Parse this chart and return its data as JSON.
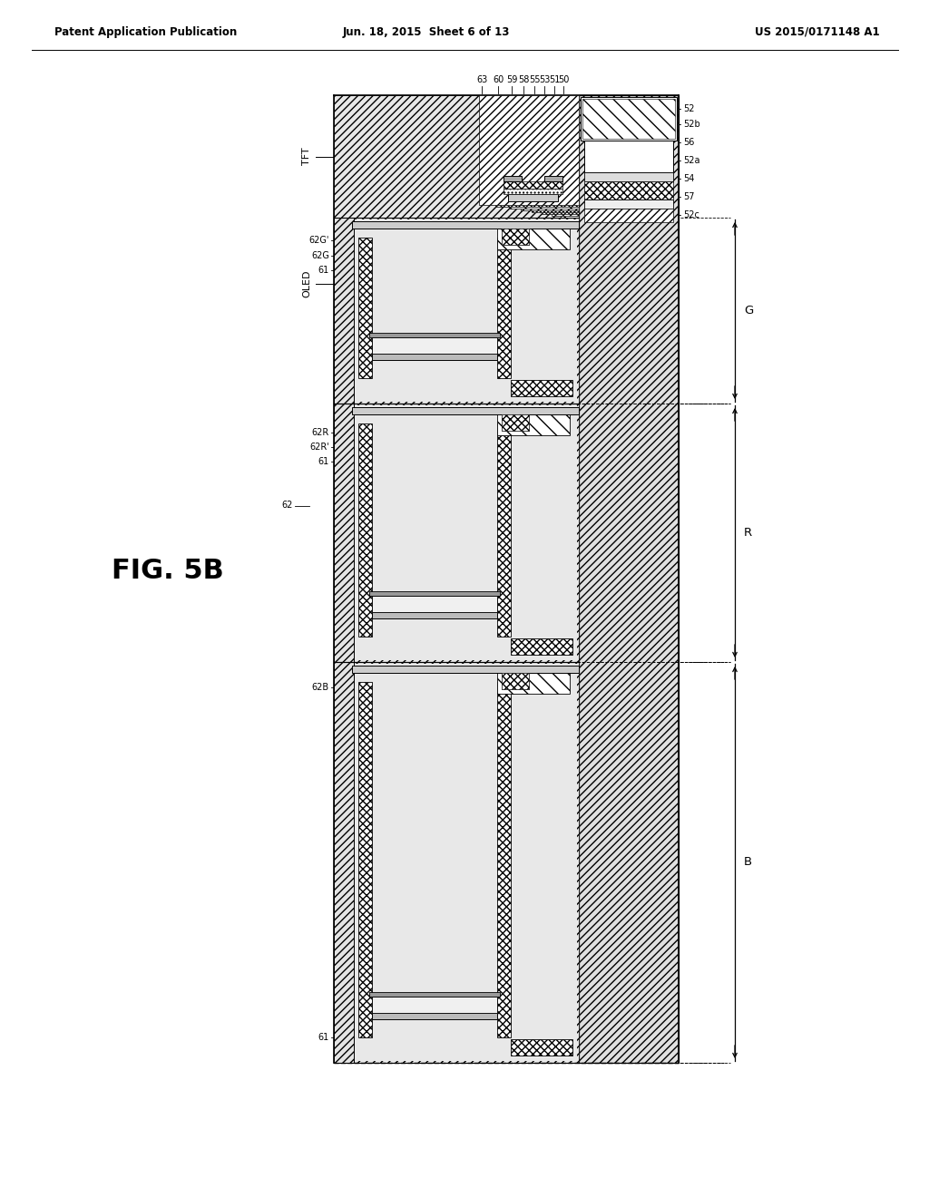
{
  "bg_color": "#ffffff",
  "header_left": "Patent Application Publication",
  "header_center": "Jun. 18, 2015  Sheet 6 of 13",
  "header_right": "US 2015/0171148 A1",
  "fig_label": "FIG. 5B",
  "top_labels": [
    "63",
    "60",
    "59",
    "58",
    "55",
    "53",
    "51",
    "50"
  ],
  "right_labels_top": [
    "52",
    "52b",
    "56",
    "52a",
    "54",
    "57",
    "52c"
  ],
  "right_bracket_labels": [
    "G",
    "R",
    "B"
  ],
  "left_labels": [
    "TFT",
    "OLED",
    "62G'",
    "62G",
    "61",
    "62",
    "62R",
    "62R'",
    "61",
    "62B",
    "61"
  ]
}
